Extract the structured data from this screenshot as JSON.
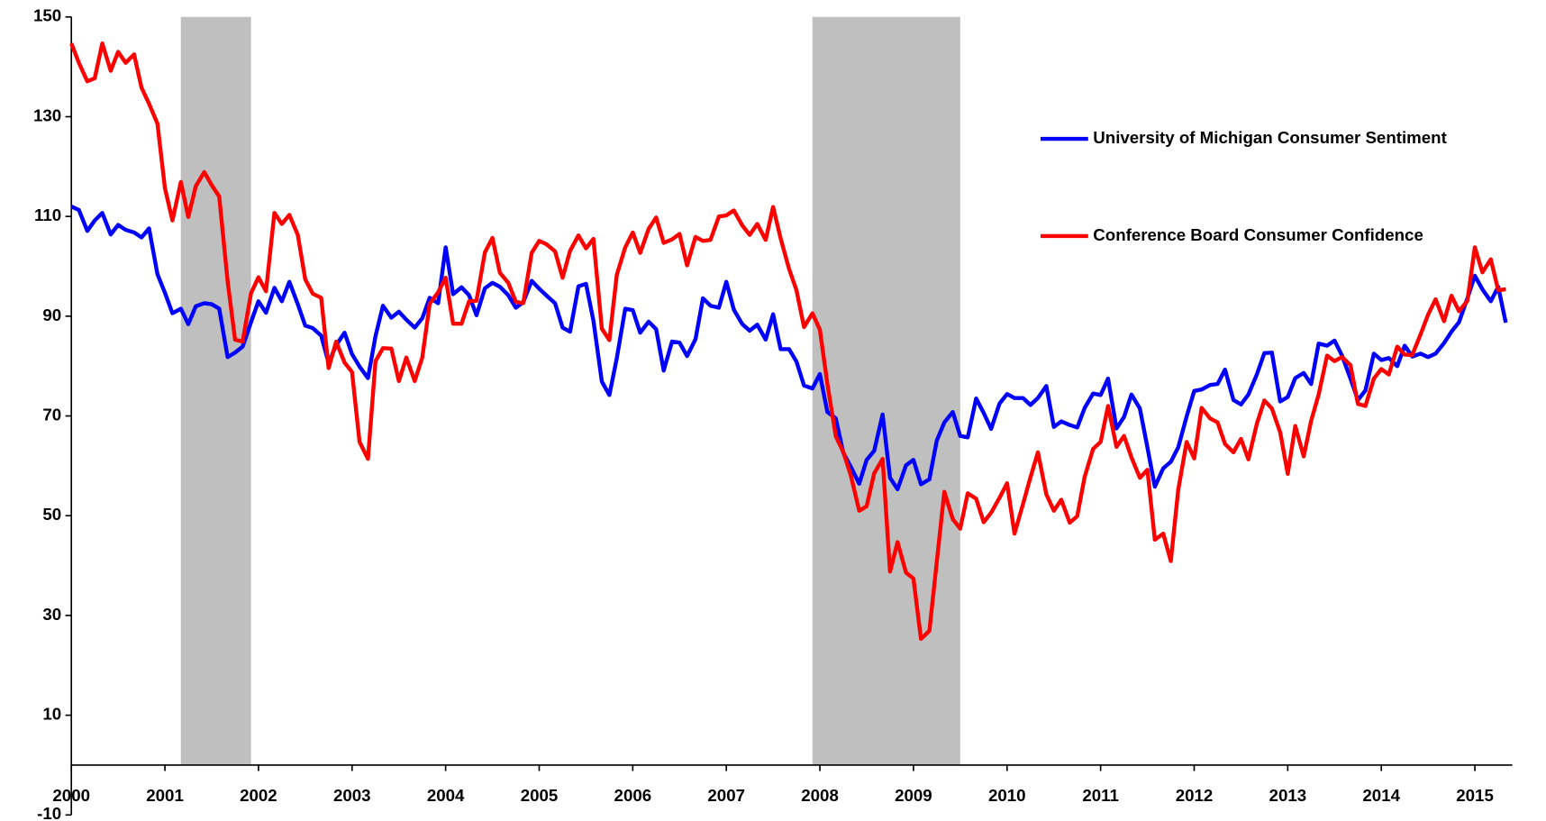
{
  "chart_data": {
    "type": "line",
    "x": [
      2000,
      2000.08,
      2000.17,
      2000.25,
      2000.33,
      2000.42,
      2000.5,
      2000.58,
      2000.67,
      2000.75,
      2000.83,
      2000.92,
      2001,
      2001.08,
      2001.17,
      2001.25,
      2001.33,
      2001.42,
      2001.5,
      2001.58,
      2001.67,
      2001.75,
      2001.83,
      2001.92,
      2002,
      2002.08,
      2002.17,
      2002.25,
      2002.33,
      2002.42,
      2002.5,
      2002.58,
      2002.67,
      2002.75,
      2002.83,
      2002.92,
      2003,
      2003.08,
      2003.17,
      2003.25,
      2003.33,
      2003.42,
      2003.5,
      2003.58,
      2003.67,
      2003.75,
      2003.83,
      2003.92,
      2004,
      2004.08,
      2004.17,
      2004.25,
      2004.33,
      2004.42,
      2004.5,
      2004.58,
      2004.67,
      2004.75,
      2004.83,
      2004.92,
      2005,
      2005.08,
      2005.17,
      2005.25,
      2005.33,
      2005.42,
      2005.5,
      2005.58,
      2005.67,
      2005.75,
      2005.83,
      2005.92,
      2006,
      2006.08,
      2006.17,
      2006.25,
      2006.33,
      2006.42,
      2006.5,
      2006.58,
      2006.67,
      2006.75,
      2006.83,
      2006.92,
      2007,
      2007.08,
      2007.17,
      2007.25,
      2007.33,
      2007.42,
      2007.5,
      2007.58,
      2007.67,
      2007.75,
      2007.83,
      2007.92,
      2008,
      2008.08,
      2008.17,
      2008.25,
      2008.33,
      2008.42,
      2008.5,
      2008.58,
      2008.67,
      2008.75,
      2008.83,
      2008.92,
      2009,
      2009.08,
      2009.17,
      2009.25,
      2009.33,
      2009.42,
      2009.5,
      2009.58,
      2009.67,
      2009.75,
      2009.83,
      2009.92,
      2010,
      2010.08,
      2010.17,
      2010.25,
      2010.33,
      2010.42,
      2010.5,
      2010.58,
      2010.67,
      2010.75,
      2010.83,
      2010.92,
      2011,
      2011.08,
      2011.17,
      2011.25,
      2011.33,
      2011.42,
      2011.5,
      2011.58,
      2011.67,
      2011.75,
      2011.83,
      2011.92,
      2012,
      2012.08,
      2012.17,
      2012.25,
      2012.33,
      2012.42,
      2012.5,
      2012.58,
      2012.67,
      2012.75,
      2012.83,
      2012.92,
      2013,
      2013.08,
      2013.17,
      2013.25,
      2013.33,
      2013.42,
      2013.5,
      2013.58,
      2013.67,
      2013.75,
      2013.83,
      2013.92,
      2014,
      2014.08,
      2014.17,
      2014.25,
      2014.33,
      2014.42,
      2014.5,
      2014.58,
      2014.67,
      2014.75,
      2014.83,
      2014.92,
      2015,
      2015.08,
      2015.17,
      2015.25,
      2015.33
    ],
    "series": [
      {
        "name": "University of Michigan Consumer Sentiment",
        "color": "#0000ff",
        "values": [
          112.0,
          111.3,
          107.1,
          109.2,
          110.7,
          106.4,
          108.3,
          107.3,
          106.8,
          105.8,
          107.6,
          98.4,
          94.7,
          90.6,
          91.5,
          88.4,
          92.0,
          92.6,
          92.4,
          91.5,
          81.8,
          82.7,
          83.9,
          88.8,
          93.0,
          90.7,
          95.7,
          93.0,
          96.9,
          92.4,
          88.1,
          87.6,
          86.1,
          80.6,
          84.2,
          86.7,
          82.4,
          79.9,
          77.6,
          86.0,
          92.1,
          89.7,
          90.9,
          89.3,
          87.7,
          89.6,
          93.7,
          92.6,
          103.8,
          94.4,
          95.8,
          94.2,
          90.2,
          95.6,
          96.7,
          95.9,
          94.2,
          91.7,
          92.8,
          97.1,
          95.5,
          94.1,
          92.6,
          87.7,
          86.9,
          96.0,
          96.5,
          89.1,
          76.9,
          74.2,
          81.6,
          91.5,
          91.2,
          86.7,
          88.9,
          87.4,
          79.1,
          84.9,
          84.7,
          82.0,
          85.4,
          93.6,
          92.1,
          91.7,
          96.9,
          91.3,
          88.4,
          87.1,
          88.3,
          85.3,
          90.4,
          83.4,
          83.4,
          80.9,
          76.1,
          75.5,
          78.4,
          70.8,
          69.5,
          62.6,
          59.8,
          56.4,
          61.2,
          63.0,
          70.3,
          57.6,
          55.3,
          60.1,
          61.2,
          56.3,
          57.3,
          65.1,
          68.7,
          70.8,
          66.0,
          65.7,
          73.5,
          70.6,
          67.4,
          72.5,
          74.4,
          73.6,
          73.6,
          72.2,
          73.6,
          76.0,
          67.8,
          68.9,
          68.2,
          67.7,
          71.6,
          74.5,
          74.2,
          77.5,
          67.5,
          69.8,
          74.3,
          71.5,
          63.7,
          55.8,
          59.5,
          60.8,
          63.7,
          69.9,
          75.0,
          75.3,
          76.2,
          76.4,
          79.3,
          73.2,
          72.3,
          74.3,
          78.3,
          82.6,
          82.7,
          72.9,
          73.8,
          77.6,
          78.6,
          76.4,
          84.5,
          84.1,
          85.1,
          82.1,
          77.5,
          73.2,
          75.1,
          82.5,
          81.2,
          81.6,
          80.0,
          84.1,
          81.9,
          82.5,
          81.8,
          82.5,
          84.6,
          86.9,
          88.8,
          93.6,
          98.1,
          95.4,
          93.0,
          95.9,
          88.7
        ]
      },
      {
        "name": "Conference Board Consumer Confidence",
        "color": "#ff0000",
        "values": [
          144.7,
          140.8,
          137.1,
          137.7,
          144.7,
          139.2,
          143.0,
          140.8,
          142.5,
          135.8,
          132.6,
          128.6,
          115.7,
          109.2,
          116.9,
          109.9,
          116.1,
          118.9,
          116.3,
          114.0,
          97.0,
          85.3,
          84.9,
          94.6,
          97.8,
          95.0,
          110.7,
          108.5,
          110.3,
          106.3,
          97.4,
          94.5,
          93.7,
          79.6,
          84.9,
          80.7,
          78.8,
          64.8,
          61.4,
          81.0,
          83.6,
          83.5,
          77.0,
          81.7,
          77.0,
          81.7,
          92.5,
          94.8,
          97.7,
          88.5,
          88.5,
          93.0,
          93.1,
          102.8,
          105.7,
          98.7,
          96.7,
          92.9,
          92.6,
          102.7,
          105.1,
          104.4,
          103.0,
          97.7,
          103.1,
          106.2,
          103.6,
          105.5,
          87.5,
          85.2,
          98.3,
          103.8,
          106.8,
          102.7,
          107.5,
          109.8,
          104.7,
          105.4,
          106.5,
          100.2,
          105.9,
          105.1,
          105.3,
          110.0,
          110.2,
          111.2,
          108.2,
          106.3,
          108.5,
          105.3,
          111.9,
          105.6,
          99.5,
          95.2,
          87.8,
          90.6,
          87.3,
          76.4,
          65.9,
          62.8,
          58.1,
          51.0,
          51.9,
          58.5,
          61.4,
          38.8,
          44.7,
          38.6,
          37.4,
          25.3,
          26.9,
          40.8,
          54.8,
          49.3,
          47.4,
          54.5,
          53.4,
          48.7,
          50.6,
          53.6,
          56.5,
          46.4,
          52.3,
          57.7,
          62.7,
          54.3,
          51.0,
          53.2,
          48.6,
          49.9,
          57.8,
          63.4,
          64.8,
          72.0,
          63.8,
          66.0,
          61.7,
          57.6,
          59.2,
          45.2,
          46.4,
          40.9,
          55.2,
          64.8,
          61.5,
          71.6,
          69.5,
          68.7,
          64.4,
          62.7,
          65.4,
          61.3,
          68.4,
          73.1,
          71.5,
          66.7,
          58.4,
          68.0,
          61.9,
          69.0,
          74.3,
          82.1,
          81.0,
          81.8,
          80.2,
          72.4,
          72.0,
          77.5,
          79.4,
          78.3,
          83.9,
          82.3,
          82.2,
          86.4,
          90.3,
          93.4,
          89.0,
          94.1,
          91.0,
          93.1,
          103.8,
          98.8,
          101.4,
          95.2,
          95.4
        ]
      }
    ],
    "xlim": [
      2000,
      2015.4
    ],
    "xticks": [
      2000,
      2001,
      2002,
      2003,
      2004,
      2005,
      2006,
      2007,
      2008,
      2009,
      2010,
      2011,
      2012,
      2013,
      2014,
      2015
    ],
    "ylim": [
      -10,
      150
    ],
    "yticks": [
      -10,
      10,
      30,
      50,
      70,
      90,
      110,
      130,
      150
    ],
    "shaded_regions": [
      [
        2001.17,
        2001.92
      ],
      [
        2007.92,
        2009.5
      ]
    ],
    "shade_color": "#bfbfbf",
    "legend": "right",
    "grid": false
  }
}
